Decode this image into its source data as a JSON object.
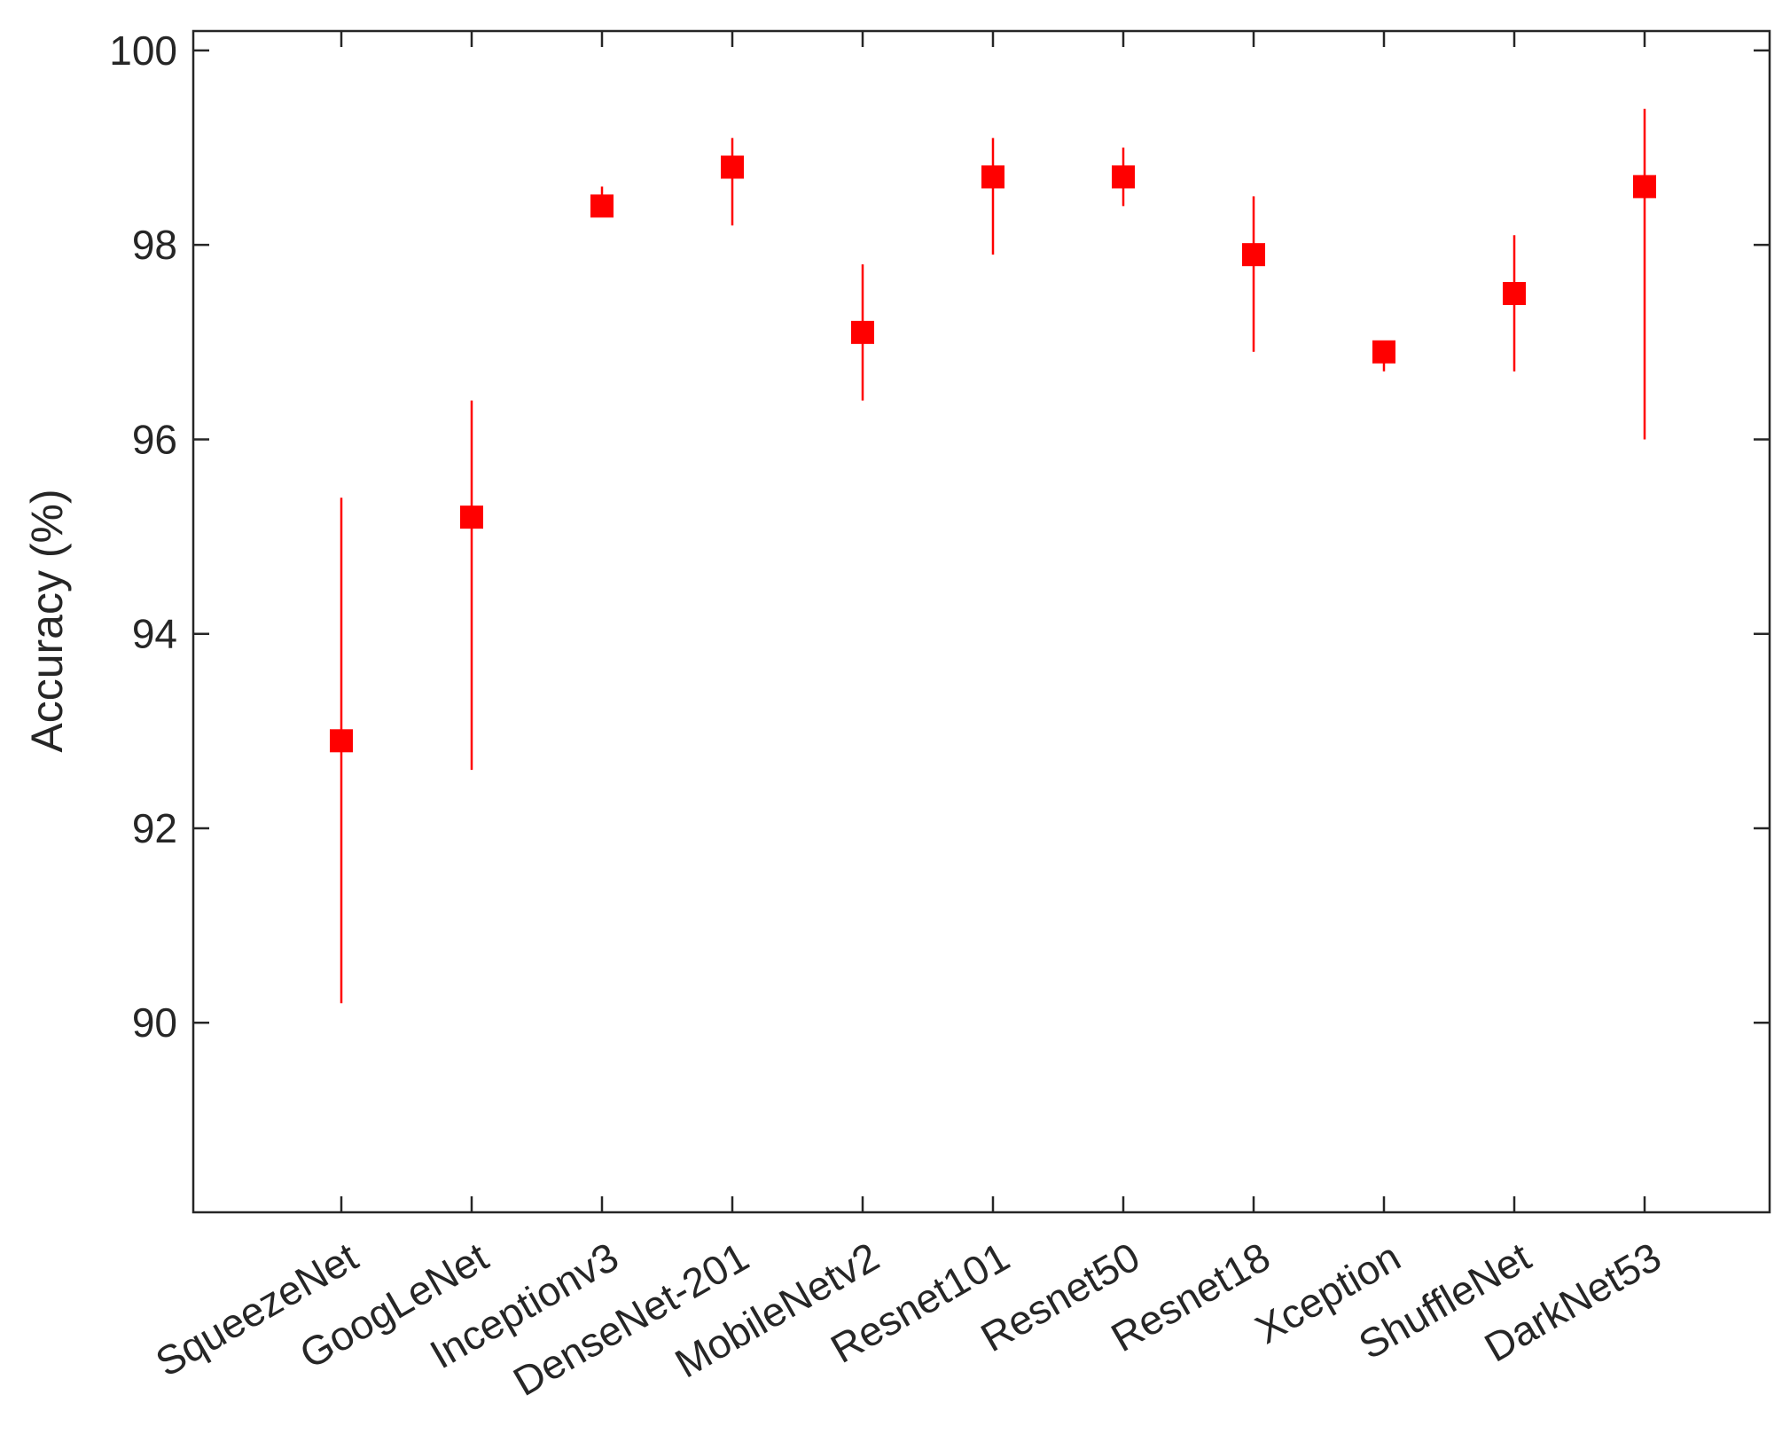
{
  "chart_data": {
    "type": "errorbar",
    "title": "",
    "xlabel": "",
    "ylabel": "Accuracy (%)",
    "categories": [
      "SqueezeNet",
      "GoogLeNet",
      "Inceptionv3",
      "DenseNet-201",
      "MobileNetv2",
      "Resnet101",
      "Resnet50",
      "Resnet18",
      "Xception",
      "ShuffleNet",
      "DarkNet53"
    ],
    "series": [
      {
        "values": [
          92.9,
          95.2,
          98.4,
          98.8,
          97.1,
          98.7,
          98.7,
          97.9,
          96.9,
          97.5,
          98.6
        ],
        "upper": [
          95.4,
          96.4,
          98.6,
          99.1,
          97.8,
          99.1,
          99.0,
          98.5,
          97.0,
          98.1,
          99.4
        ],
        "lower": [
          90.2,
          92.6,
          98.3,
          98.2,
          96.4,
          97.9,
          98.4,
          96.9,
          96.7,
          96.7,
          96.0
        ]
      }
    ],
    "ylim": [
      88.05,
      100.2
    ],
    "yticks": [
      90,
      92,
      94,
      96,
      98,
      100
    ],
    "marker": "square",
    "color": "#ff0000",
    "axis_color": "#262626",
    "grid": false,
    "legend": "none"
  }
}
